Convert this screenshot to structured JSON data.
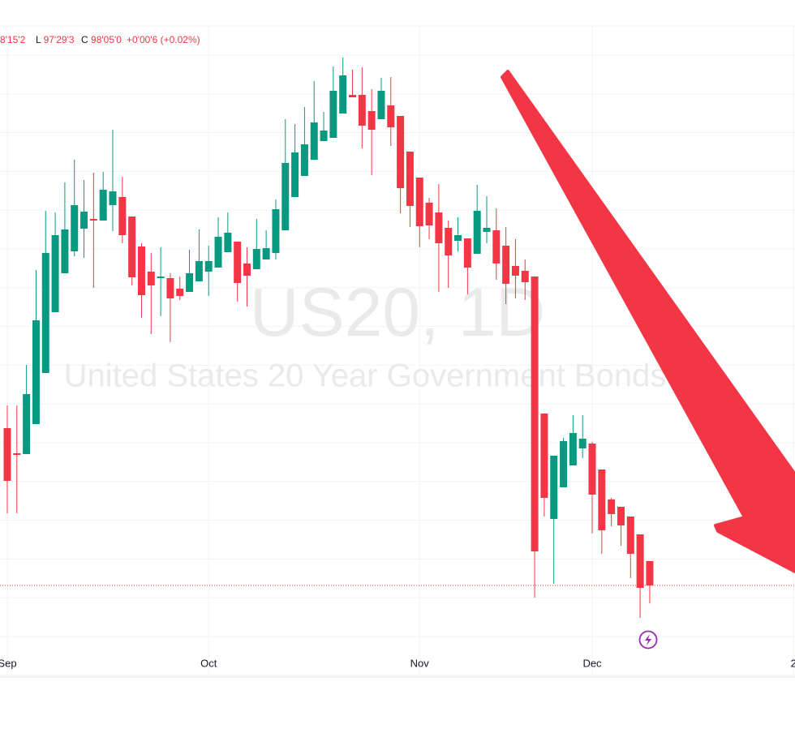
{
  "chart_data": {
    "type": "candlestick",
    "watermark_symbol": "US20, 1D",
    "watermark_name": "United States 20 Year Government Bonds",
    "ohlc_legend": {
      "high_partial": "8'15'2",
      "low_label": "L",
      "low": "97'29'3",
      "close_label": "C",
      "close": "98'05'0",
      "change": "+0'00'6 (+0.02%)"
    },
    "x": [
      0,
      1,
      2,
      3,
      4,
      5,
      6,
      7,
      8,
      9,
      10,
      11,
      12,
      13,
      14,
      15,
      16,
      17,
      18,
      19,
      20,
      21,
      22,
      23,
      24,
      25,
      26,
      27,
      28,
      29,
      30,
      31,
      32,
      33,
      34,
      35,
      36,
      37,
      38,
      39,
      40,
      41,
      42,
      43,
      44,
      45,
      46,
      47,
      48,
      49,
      50,
      51,
      52,
      53,
      54,
      55,
      56,
      57,
      58,
      59,
      60,
      61,
      62,
      63,
      64,
      65,
      66,
      67
    ],
    "open": [
      272,
      241,
      240,
      277,
      340,
      415,
      463,
      490,
      518,
      530,
      528,
      547,
      557,
      533,
      496,
      465,
      457,
      457,
      444,
      440,
      453,
      465,
      470,
      489,
      502,
      475,
      468,
      480,
      488,
      516,
      557,
      583,
      603,
      626,
      630,
      660,
      683,
      683,
      663,
      653,
      670,
      657,
      613,
      581,
      550,
      538,
      519,
      503,
      506,
      487,
      514,
      516,
      497,
      472,
      466,
      459,
      290,
      160,
      199,
      226,
      247,
      253,
      221,
      184,
      175,
      163,
      141,
      108
    ],
    "high": [
      300,
      300,
      350,
      467,
      540,
      538,
      575,
      603,
      578,
      587,
      588,
      640,
      582,
      533,
      500,
      488,
      495,
      463,
      459,
      492,
      517,
      497,
      532,
      538,
      502,
      495,
      530,
      516,
      554,
      653,
      647,
      668,
      700,
      662,
      718,
      729,
      714,
      717,
      690,
      704,
      705,
      657,
      613,
      581,
      556,
      573,
      528,
      532,
      506,
      572,
      558,
      543,
      520,
      505,
      480,
      459,
      290,
      238,
      260,
      288,
      288,
      255,
      221,
      186,
      175,
      163,
      141,
      108
    ],
    "low": [
      167,
      167,
      240,
      277,
      340,
      415,
      463,
      484,
      482,
      445,
      528,
      515,
      500,
      448,
      408,
      388,
      410,
      378,
      430,
      440,
      453,
      435,
      470,
      489,
      428,
      422,
      468,
      480,
      480,
      516,
      557,
      583,
      603,
      626,
      630,
      660,
      680,
      617,
      584,
      653,
      620,
      537,
      520,
      495,
      505,
      440,
      445,
      490,
      437,
      487,
      500,
      455,
      425,
      432,
      430,
      63,
      163,
      80,
      199,
      226,
      235,
      142,
      117,
      151,
      127,
      87,
      38,
      56
    ],
    "close": [
      207,
      239,
      314,
      405,
      488,
      510,
      517,
      547,
      539,
      528,
      566,
      564,
      510,
      458,
      436,
      448,
      459,
      432,
      435,
      463,
      478,
      478,
      508,
      513,
      451,
      460,
      493,
      494,
      542,
      599,
      612,
      622,
      649,
      639,
      688,
      707,
      680,
      645,
      640,
      688,
      643,
      568,
      546,
      521,
      522,
      500,
      485,
      510,
      470,
      540,
      519,
      475,
      450,
      460,
      452,
      120,
      186,
      238,
      256,
      266,
      259,
      190,
      146,
      166,
      152,
      117,
      75,
      78
    ],
    "up_color": "#089981",
    "down_color": "#f23645",
    "xlim": [
      -0.76,
      82.15
    ],
    "ylim": [
      0,
      768
    ],
    "xticks": [
      {
        "value": 0,
        "label": "Sep"
      },
      {
        "value": 21,
        "label": "Oct"
      },
      {
        "value": 43,
        "label": "Nov"
      },
      {
        "value": 61,
        "label": "Dec"
      },
      {
        "value": 82,
        "label": "2"
      }
    ],
    "grid": true
  }
}
